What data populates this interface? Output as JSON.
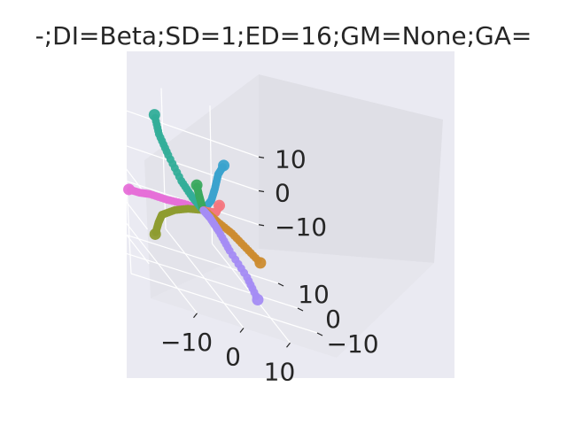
{
  "chart_data": {
    "type": "scatter",
    "projection": "3d",
    "title": "-;DI=Beta;SD=1;ED=16;GM=None;GA=",
    "xlabel": "",
    "ylabel": "",
    "zlabel": "",
    "x_ticks": [
      "−10",
      "0",
      "10"
    ],
    "y_ticks": [
      "−10",
      "0",
      "10"
    ],
    "z_ticks": [
      "−10",
      "0",
      "10"
    ],
    "grid": true,
    "background": "#eaeaf2",
    "series": [
      {
        "color": "#e66fd8",
        "points": [
          [
            -18,
            -6,
            2
          ],
          [
            -15,
            -4,
            1
          ],
          [
            -12,
            -2,
            0.5
          ],
          [
            -8,
            -1,
            0
          ],
          [
            -4,
            0,
            0
          ],
          [
            0,
            0,
            0
          ]
        ]
      },
      {
        "color": "#8e9c30",
        "points": [
          [
            -16,
            -14,
            -4
          ],
          [
            -14,
            -11,
            -2
          ],
          [
            -12,
            -8,
            -1
          ],
          [
            -8,
            -5,
            0
          ],
          [
            -4,
            -2,
            0
          ],
          [
            0,
            0,
            0
          ]
        ]
      },
      {
        "color": "#33ae99",
        "points": [
          [
            -4,
            14,
            15
          ],
          [
            -4,
            12,
            11
          ],
          [
            -3,
            10,
            7
          ],
          [
            -2,
            6,
            3
          ],
          [
            -1,
            3,
            1
          ],
          [
            0,
            0,
            0
          ]
        ]
      },
      {
        "color": "#3ba3cd",
        "points": [
          [
            9,
            11,
            9
          ],
          [
            7,
            9,
            7
          ],
          [
            5,
            6,
            4
          ],
          [
            3,
            3,
            2
          ],
          [
            1,
            1,
            0.5
          ],
          [
            0,
            0,
            0
          ]
        ]
      },
      {
        "color": "#3aa95f",
        "points": [
          [
            0,
            3,
            5
          ],
          [
            0,
            2,
            3
          ],
          [
            0,
            1,
            1.5
          ],
          [
            0,
            0,
            0
          ]
        ]
      },
      {
        "color": "#f4777f",
        "points": [
          [
            10,
            16,
            -6
          ],
          [
            8,
            12,
            -5
          ],
          [
            6,
            8,
            -4
          ],
          [
            3,
            4,
            -2
          ],
          [
            1,
            1,
            -0.5
          ],
          [
            0,
            0,
            0
          ]
        ]
      },
      {
        "color": "#cc8c30",
        "points": [
          [
            12,
            0,
            -10
          ],
          [
            9,
            0,
            -7
          ],
          [
            6,
            0,
            -4
          ],
          [
            3,
            0,
            -2
          ],
          [
            1,
            0,
            -0.5
          ],
          [
            0,
            0,
            0
          ]
        ]
      },
      {
        "color": "#a48cf4",
        "points": [
          [
            6,
            -13,
            -14
          ],
          [
            5,
            -10,
            -10
          ],
          [
            3,
            -6,
            -6
          ],
          [
            2,
            -3,
            -3
          ],
          [
            1,
            -1,
            -1
          ],
          [
            0,
            0,
            0
          ]
        ]
      }
    ]
  }
}
